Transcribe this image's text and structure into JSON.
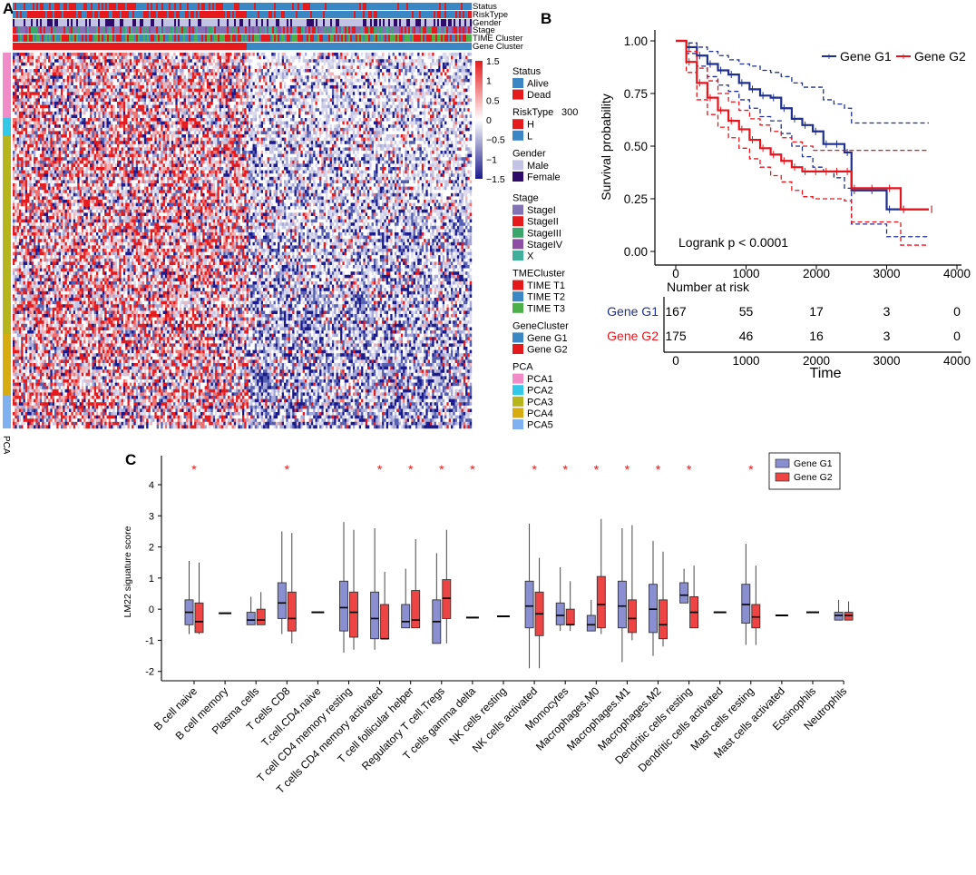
{
  "panels": {
    "a": {
      "label": "A",
      "annotation_tracks": [
        "Status",
        "RiskType",
        "Gender",
        "Stage",
        "TIME Cluster",
        "Gene Cluster"
      ],
      "row_annotation_label": "PCA",
      "colorbar": {
        "ticks": [
          "1.5",
          "1",
          "0.5",
          "0",
          "−0.5",
          "−1",
          "−1.5"
        ],
        "colors": [
          "#e41a1c",
          "#ffffff",
          "#1a1a8c"
        ]
      },
      "stray_label": "300",
      "legends": [
        {
          "title": "Status",
          "items": [
            {
              "label": "Alive",
              "color": "#3b87c4"
            },
            {
              "label": "Dead",
              "color": "#e41a1c"
            }
          ]
        },
        {
          "title": "RiskType",
          "items": [
            {
              "label": "H",
              "color": "#e41a1c"
            },
            {
              "label": "L",
              "color": "#3b87c4"
            }
          ]
        },
        {
          "title": "Gender",
          "items": [
            {
              "label": "Male",
              "color": "#c3c3e6"
            },
            {
              "label": "Female",
              "color": "#2e0a6b"
            }
          ]
        },
        {
          "title": "Stage",
          "items": [
            {
              "label": "StageI",
              "color": "#8273b5"
            },
            {
              "label": "StageII",
              "color": "#e41a1c"
            },
            {
              "label": "StageIII",
              "color": "#3aa66b"
            },
            {
              "label": "StageIV",
              "color": "#8c4fa3"
            },
            {
              "label": "X",
              "color": "#3fae9a"
            }
          ]
        },
        {
          "title": "TMECluster",
          "items": [
            {
              "label": "TIME T1",
              "color": "#e41a1c"
            },
            {
              "label": "TIME T2",
              "color": "#3b87c4"
            },
            {
              "label": "TIME T3",
              "color": "#4daf4a"
            }
          ]
        },
        {
          "title": "GeneCluster",
          "items": [
            {
              "label": "Gene G1",
              "color": "#3b87c4"
            },
            {
              "label": "Gene G2",
              "color": "#e41a1c"
            }
          ]
        },
        {
          "title": "PCA",
          "items": [
            {
              "label": "PCA1",
              "color": "#f28cc8"
            },
            {
              "label": "PCA2",
              "color": "#33c8e8"
            },
            {
              "label": "PCA3",
              "color": "#b7b51c"
            },
            {
              "label": "PCA4",
              "color": "#d7ac10"
            },
            {
              "label": "PCA5",
              "color": "#7fb1f0"
            }
          ]
        }
      ]
    },
    "b": {
      "label": "B"
    },
    "c": {
      "label": "C"
    }
  },
  "chart_data": [
    {
      "type": "heatmap",
      "panel": "A",
      "value_range": [
        -1.5,
        1.5
      ],
      "cluster_split": "Gene G2 samples left (high expression), Gene G1 samples right (low expression)"
    },
    {
      "type": "line",
      "panel": "B",
      "title": "",
      "xlabel": "Time",
      "ylabel": "Survival probability",
      "xlim": [
        0,
        4000
      ],
      "ylim": [
        0,
        1
      ],
      "xticks": [
        "0",
        "1000",
        "2000",
        "3000",
        "4000"
      ],
      "yticks": [
        "0.00",
        "0.25",
        "0.50",
        "0.75",
        "1.00"
      ],
      "annotation": "Logrank p < 0.0001",
      "legend": [
        "Gene G1",
        "Gene G2"
      ],
      "series": [
        {
          "name": "Gene G1",
          "color": "#1f2f8f",
          "x": [
            0,
            150,
            300,
            450,
            600,
            750,
            900,
            1050,
            1200,
            1350,
            1500,
            1650,
            1800,
            1950,
            2100,
            2250,
            2400,
            2500,
            2750,
            3000,
            3200,
            3600
          ],
          "y": [
            1.0,
            0.97,
            0.93,
            0.89,
            0.86,
            0.84,
            0.8,
            0.77,
            0.74,
            0.73,
            0.68,
            0.63,
            0.6,
            0.57,
            0.51,
            0.51,
            0.47,
            0.29,
            0.29,
            0.2,
            0.2,
            0.2
          ],
          "upper": [
            1.0,
            0.99,
            0.97,
            0.95,
            0.93,
            0.91,
            0.89,
            0.88,
            0.86,
            0.85,
            0.83,
            0.8,
            0.78,
            0.78,
            0.72,
            0.7,
            0.68,
            0.61,
            0.61,
            0.61,
            0.61,
            0.61
          ],
          "lower": [
            1.0,
            0.94,
            0.88,
            0.83,
            0.79,
            0.76,
            0.72,
            0.68,
            0.64,
            0.62,
            0.56,
            0.5,
            0.45,
            0.4,
            0.38,
            0.35,
            0.3,
            0.13,
            0.13,
            0.07,
            0.07,
            0.07
          ]
        },
        {
          "name": "Gene G2",
          "color": "#e8141c",
          "x": [
            0,
            150,
            300,
            450,
            600,
            750,
            900,
            1050,
            1200,
            1350,
            1500,
            1650,
            1800,
            1950,
            2100,
            2250,
            2400,
            2500,
            2750,
            3000,
            3200,
            3600
          ],
          "y": [
            1.0,
            0.9,
            0.8,
            0.73,
            0.67,
            0.62,
            0.58,
            0.53,
            0.49,
            0.46,
            0.43,
            0.4,
            0.38,
            0.38,
            0.38,
            0.38,
            0.38,
            0.3,
            0.3,
            0.3,
            0.2,
            0.2
          ],
          "upper": [
            1.0,
            0.95,
            0.87,
            0.81,
            0.75,
            0.71,
            0.67,
            0.63,
            0.6,
            0.57,
            0.54,
            0.52,
            0.5,
            0.48,
            0.48,
            0.48,
            0.48,
            0.48,
            0.48,
            0.48,
            0.48,
            0.48
          ],
          "lower": [
            1.0,
            0.85,
            0.72,
            0.65,
            0.59,
            0.54,
            0.49,
            0.44,
            0.4,
            0.36,
            0.33,
            0.29,
            0.26,
            0.25,
            0.25,
            0.25,
            0.24,
            0.14,
            0.14,
            0.14,
            0.03,
            0.03
          ]
        }
      ],
      "risk_table": {
        "title": "Number at risk",
        "rows": [
          {
            "name": "Gene G1",
            "color": "#1f2f8f",
            "values": [
              "167",
              "55",
              "17",
              "3",
              "0"
            ]
          },
          {
            "name": "Gene G2",
            "color": "#e8141c",
            "values": [
              "175",
              "46",
              "16",
              "3",
              "0"
            ]
          }
        ],
        "xticks": [
          "0",
          "1000",
          "2000",
          "3000",
          "4000"
        ],
        "xlabel": "Time"
      }
    },
    {
      "type": "bar",
      "subtype": "boxplot",
      "panel": "C",
      "ylabel": "LM22 siguature score",
      "ylim": [
        -2.3,
        4.7
      ],
      "yticks": [
        "-2",
        "-1",
        "0",
        "1",
        "2",
        "3",
        "4"
      ],
      "legend": [
        {
          "name": "Gene G1",
          "color": "#8a8fd1"
        },
        {
          "name": "Gene G2",
          "color": "#ee4444"
        }
      ],
      "significance_mark": "*",
      "categories": [
        "B cell naive",
        "B cell memory",
        "Plasma cells",
        "T cells CD8",
        "T.cell.CD4.naive",
        "T cell CD4 memory resting",
        "T cells CD4 memory activated",
        "T cell follicular helper",
        "Regulatory T cell.Tregs",
        "T cells gamma delta",
        "NK cells resting",
        "NK cells activated",
        "Momocytes",
        "Macrophages.M0",
        "Macrophages.M1",
        "Macrophages.M2",
        "Dendritic cells resting",
        "Dendritic cells activated",
        "Mast cells resting",
        "Mast cells activated",
        "Eosinophils",
        "Neutrophils"
      ],
      "significant": [
        true,
        false,
        false,
        true,
        false,
        false,
        true,
        true,
        true,
        true,
        false,
        true,
        true,
        true,
        true,
        true,
        true,
        false,
        true,
        false,
        false,
        false
      ],
      "series": [
        {
          "name": "Gene G1",
          "stats": [
            [
              -0.8,
              -0.5,
              -0.1,
              0.3,
              1.55
            ],
            null,
            [
              -0.5,
              -0.5,
              -0.35,
              -0.1,
              0.4
            ],
            [
              -0.8,
              -0.3,
              0.2,
              0.85,
              2.5
            ],
            null,
            [
              -1.4,
              -0.7,
              0.05,
              0.9,
              2.8
            ],
            [
              -1.3,
              -0.95,
              -0.3,
              0.55,
              2.6
            ],
            [
              -0.6,
              -0.6,
              -0.4,
              0.15,
              1.3
            ],
            [
              -1.1,
              -1.1,
              -0.4,
              0.3,
              1.8
            ],
            null,
            null,
            [
              -1.9,
              -0.6,
              0.1,
              0.9,
              2.75
            ],
            [
              -0.7,
              -0.5,
              -0.2,
              0.2,
              1.35
            ],
            [
              -0.7,
              -0.7,
              -0.5,
              -0.2,
              0.3
            ],
            [
              -1.7,
              -0.6,
              0.1,
              0.9,
              2.6
            ],
            [
              -1.5,
              -0.75,
              0.0,
              0.8,
              2.2
            ],
            [
              0.2,
              0.2,
              0.45,
              0.85,
              1.3
            ],
            null,
            [
              -1.15,
              -0.45,
              0.15,
              0.8,
              2.1
            ],
            null,
            null,
            [
              -0.35,
              -0.35,
              -0.2,
              -0.1,
              0.3
            ]
          ]
        },
        {
          "name": "Gene G2",
          "stats": [
            [
              -0.8,
              -0.75,
              -0.4,
              0.2,
              1.5
            ],
            null,
            [
              -0.5,
              -0.5,
              -0.35,
              0.0,
              0.55
            ],
            [
              -1.1,
              -0.7,
              -0.3,
              0.55,
              2.45
            ],
            null,
            [
              -1.3,
              -0.9,
              -0.1,
              0.55,
              2.55
            ],
            [
              -0.95,
              -0.95,
              -0.95,
              0.15,
              1.2
            ],
            [
              -0.6,
              -0.6,
              -0.35,
              0.6,
              2.25
            ],
            [
              -1.1,
              -0.3,
              0.35,
              0.95,
              2.55
            ],
            null,
            null,
            [
              -1.9,
              -0.85,
              -0.15,
              0.55,
              1.65
            ],
            [
              -0.7,
              -0.5,
              -0.5,
              0.0,
              0.9
            ],
            [
              -0.8,
              -0.6,
              0.15,
              1.05,
              2.9
            ],
            [
              -1.0,
              -0.75,
              -0.3,
              0.3,
              2.7
            ],
            [
              -1.2,
              -0.95,
              -0.5,
              0.3,
              1.85
            ],
            [
              -0.6,
              -0.6,
              -0.1,
              0.4,
              1.4
            ],
            null,
            [
              -1.15,
              -0.6,
              -0.25,
              0.15,
              1.4
            ],
            null,
            null,
            [
              -0.35,
              -0.35,
              -0.2,
              -0.1,
              0.25
            ]
          ]
        }
      ],
      "single_values": {
        "B cell memory": -0.13,
        "T.cell.CD4.naive": -0.1,
        "T cells gamma delta": -0.27,
        "NK cells resting": -0.23,
        "Dendritic cells activated": -0.1,
        "Mast cells activated": -0.2,
        "Eosinophils": -0.1
      }
    }
  ]
}
